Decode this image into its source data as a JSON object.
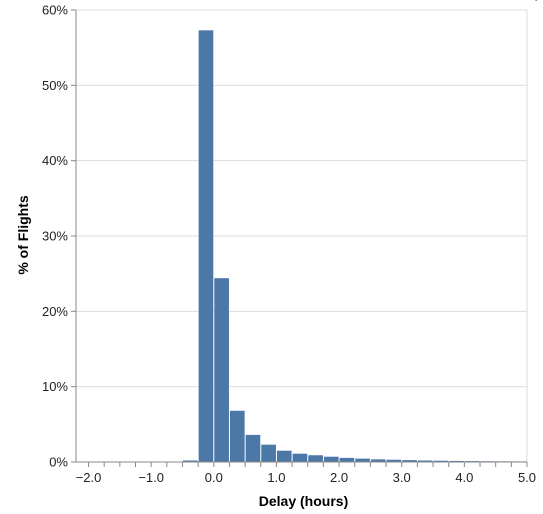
{
  "chart_data": {
    "type": "bar",
    "xlabel": "Delay (hours)",
    "ylabel": "% of Flights",
    "xlim": [
      -2.2,
      5.0
    ],
    "ylim": [
      0,
      60
    ],
    "bin_width": 0.25,
    "x_ticks": [
      {
        "value": -2.0,
        "label": "−2.0"
      },
      {
        "value": -1.0,
        "label": "−1.0"
      },
      {
        "value": 0.0,
        "label": "0.0"
      },
      {
        "value": 1.0,
        "label": "1.0"
      },
      {
        "value": 2.0,
        "label": "2.0"
      },
      {
        "value": 3.0,
        "label": "3.0"
      },
      {
        "value": 4.0,
        "label": "4.0"
      },
      {
        "value": 5.0,
        "label": "5.0"
      }
    ],
    "y_ticks": [
      {
        "value": 0,
        "label": "0%"
      },
      {
        "value": 10,
        "label": "10%"
      },
      {
        "value": 20,
        "label": "20%"
      },
      {
        "value": 30,
        "label": "30%"
      },
      {
        "value": 40,
        "label": "40%"
      },
      {
        "value": 50,
        "label": "50%"
      },
      {
        "value": 60,
        "label": "60%"
      }
    ],
    "bins": [
      {
        "x0": -0.5,
        "x1": -0.25,
        "value": 0.2
      },
      {
        "x0": -0.25,
        "x1": 0.0,
        "value": 57.3
      },
      {
        "x0": 0.0,
        "x1": 0.25,
        "value": 24.4
      },
      {
        "x0": 0.25,
        "x1": 0.5,
        "value": 6.8
      },
      {
        "x0": 0.5,
        "x1": 0.75,
        "value": 3.6
      },
      {
        "x0": 0.75,
        "x1": 1.0,
        "value": 2.3
      },
      {
        "x0": 1.0,
        "x1": 1.25,
        "value": 1.5
      },
      {
        "x0": 1.25,
        "x1": 1.5,
        "value": 1.1
      },
      {
        "x0": 1.5,
        "x1": 1.75,
        "value": 0.9
      },
      {
        "x0": 1.75,
        "x1": 2.0,
        "value": 0.7
      },
      {
        "x0": 2.0,
        "x1": 2.25,
        "value": 0.55
      },
      {
        "x0": 2.25,
        "x1": 2.5,
        "value": 0.45
      },
      {
        "x0": 2.5,
        "x1": 2.75,
        "value": 0.35
      },
      {
        "x0": 2.75,
        "x1": 3.0,
        "value": 0.3
      },
      {
        "x0": 3.0,
        "x1": 3.25,
        "value": 0.25
      },
      {
        "x0": 3.25,
        "x1": 3.5,
        "value": 0.2
      },
      {
        "x0": 3.5,
        "x1": 3.75,
        "value": 0.17
      },
      {
        "x0": 3.75,
        "x1": 4.0,
        "value": 0.14
      },
      {
        "x0": 4.0,
        "x1": 4.25,
        "value": 0.12
      },
      {
        "x0": 4.25,
        "x1": 4.5,
        "value": 0.1
      },
      {
        "x0": 4.5,
        "x1": 4.75,
        "value": 0.09
      },
      {
        "x0": 4.75,
        "x1": 5.0,
        "value": 0.08
      }
    ],
    "grid": true,
    "colors": {
      "bar": "#4c78a8",
      "grid": "#dddddd",
      "axis": "#888888"
    }
  }
}
